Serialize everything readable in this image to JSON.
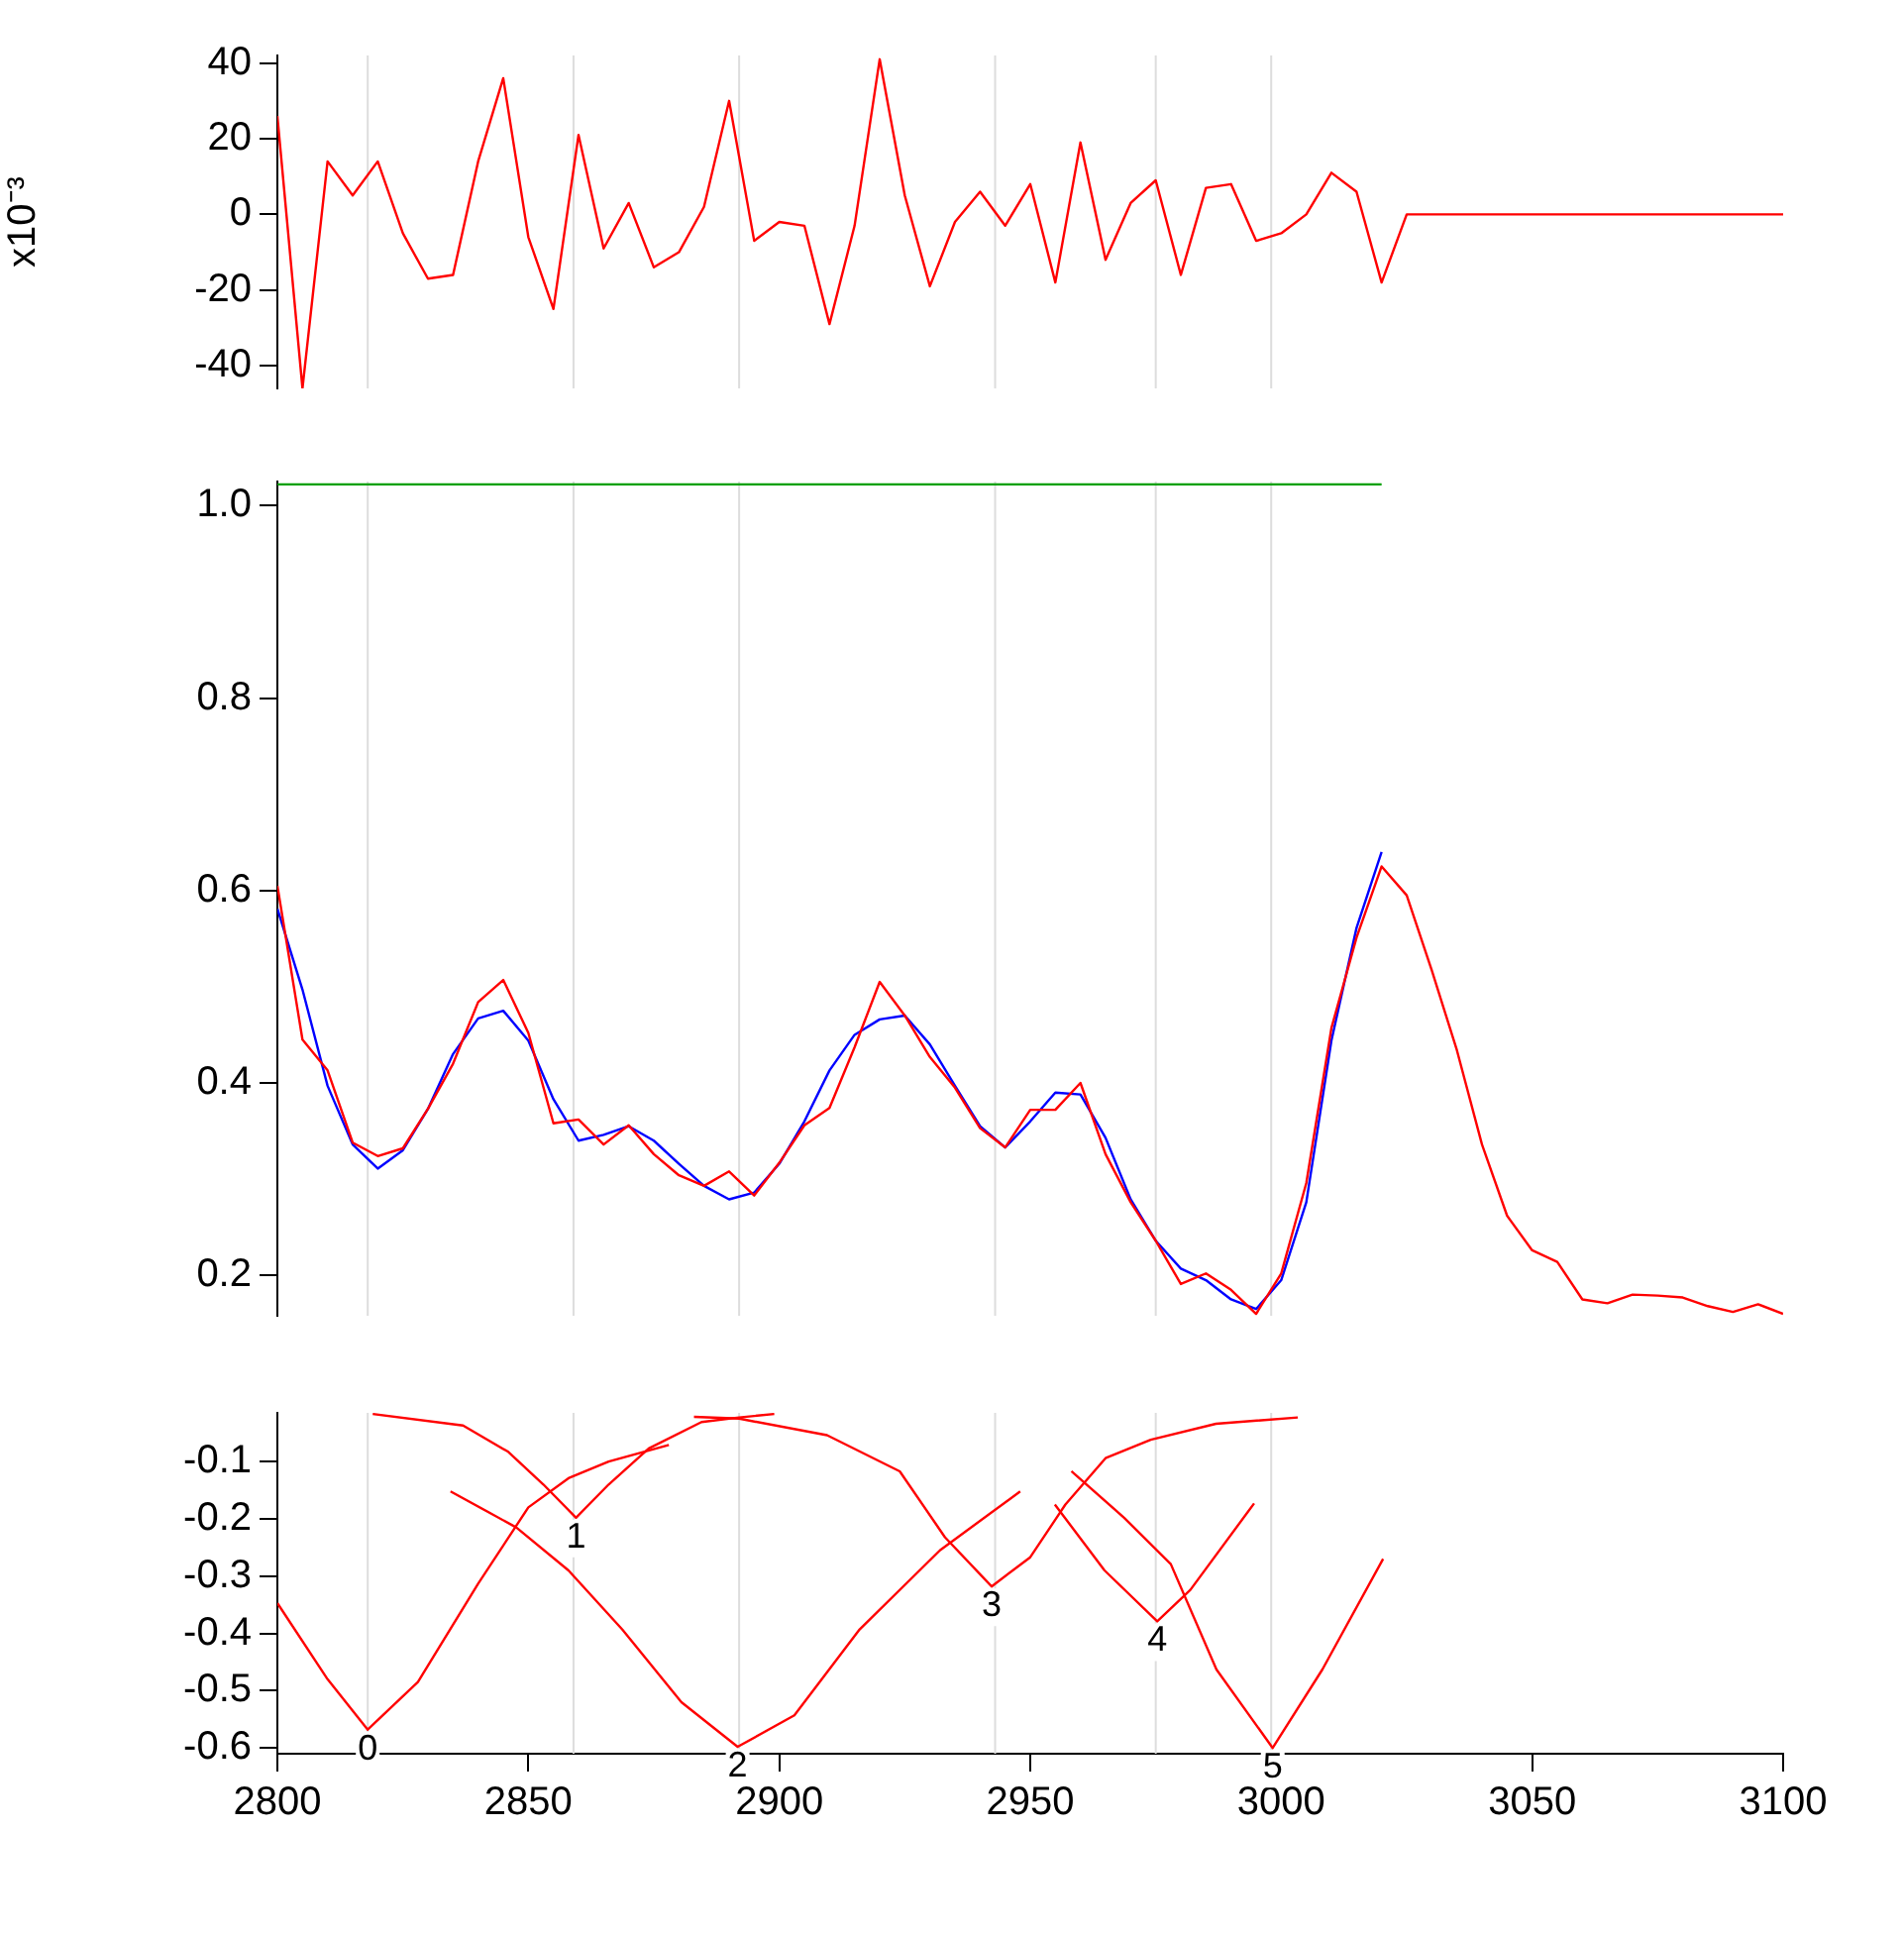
{
  "chart_data": [
    {
      "type": "line",
      "ylabel": "x10⁻³",
      "xlim": [
        2800,
        3100
      ],
      "ylim": [
        -46,
        42
      ],
      "yticks": [
        -40,
        -20,
        0,
        20,
        40
      ],
      "tick_labels": "y",
      "ref_lines": [
        {
          "axis": "x",
          "value": 2818,
          "color": "#dddddd"
        },
        {
          "axis": "x",
          "value": 2859,
          "color": "#dddddd"
        },
        {
          "axis": "x",
          "value": 2892,
          "color": "#dddddd"
        },
        {
          "axis": "x",
          "value": 2943,
          "color": "#dddddd"
        },
        {
          "axis": "x",
          "value": 2975,
          "color": "#dddddd"
        },
        {
          "axis": "x",
          "value": 2998,
          "color": "#dddddd"
        }
      ],
      "series": [
        {
          "color": "#ff0000",
          "x": [
            2800,
            2805,
            2810,
            2815,
            2820,
            2825,
            2830,
            2835,
            2840,
            2845,
            2850,
            2855,
            2860,
            2865,
            2870,
            2875,
            2880,
            2885,
            2890,
            2895,
            2900,
            2905,
            2910,
            2915,
            2920,
            2925,
            2930,
            2935,
            2940,
            2945,
            2950,
            2955,
            2960,
            2965,
            2970,
            2975,
            2980,
            2985,
            2990,
            2995,
            3000,
            3005,
            3010,
            3015,
            3020,
            3025,
            3100
          ],
          "values": [
            26,
            -46,
            14,
            5,
            14,
            -5,
            -17,
            -16,
            14,
            36,
            -6,
            -25,
            21,
            -9,
            3,
            -14,
            -10,
            2,
            30,
            -7,
            -2,
            -3,
            -29,
            -3,
            41,
            5,
            -19,
            -2,
            6,
            -3,
            8,
            -18,
            19,
            -12,
            3,
            9,
            -16,
            7,
            8,
            -7,
            -5,
            0,
            11,
            6,
            -18,
            0,
            0
          ]
        }
      ]
    },
    {
      "type": "line",
      "xlim": [
        2800,
        3100
      ],
      "ylim": [
        0.158,
        1.025
      ],
      "yticks": [
        0.2,
        0.4,
        0.6,
        0.8,
        {
          "value": 1,
          "label": "1.0"
        }
      ],
      "tick_labels": "y",
      "ref_lines": [
        {
          "axis": "x",
          "value": 2818,
          "color": "#dddddd"
        },
        {
          "axis": "x",
          "value": 2859,
          "color": "#dddddd"
        },
        {
          "axis": "x",
          "value": 2892,
          "color": "#dddddd"
        },
        {
          "axis": "x",
          "value": 2943,
          "color": "#dddddd"
        },
        {
          "axis": "x",
          "value": 2975,
          "color": "#dddddd"
        },
        {
          "axis": "x",
          "value": 2998,
          "color": "#dddddd"
        }
      ],
      "series": [
        {
          "color": "#00a000",
          "x": [
            2800,
            3020
          ],
          "values": [
            1.022,
            1.022
          ]
        },
        {
          "color": "#ff0000",
          "x": [
            2800,
            2805,
            2810,
            2815,
            2820,
            2825,
            2830,
            2835,
            2840,
            2845,
            2850,
            2855,
            2860,
            2865,
            2870,
            2875,
            2880,
            2885,
            2890,
            2895,
            2900,
            2905,
            2910,
            2915,
            2920,
            2925,
            2930,
            2935,
            2940,
            2945,
            2950,
            2955,
            2960,
            2965,
            2970,
            2975,
            2980,
            2985,
            2990,
            2995,
            3000,
            3005,
            3010,
            3015,
            3020,
            3025,
            3030,
            3035,
            3040,
            3045,
            3050,
            3055,
            3060,
            3065,
            3070,
            3075,
            3080,
            3085,
            3090,
            3095,
            3100
          ],
          "values": [
            0.605,
            0.445,
            0.413,
            0.338,
            0.324,
            0.332,
            0.373,
            0.42,
            0.484,
            0.507,
            0.452,
            0.358,
            0.362,
            0.336,
            0.356,
            0.326,
            0.304,
            0.293,
            0.308,
            0.283,
            0.317,
            0.356,
            0.374,
            0.437,
            0.505,
            0.47,
            0.427,
            0.395,
            0.353,
            0.333,
            0.372,
            0.372,
            0.4,
            0.326,
            0.276,
            0.236,
            0.191,
            0.202,
            0.185,
            0.16,
            0.202,
            0.296,
            0.457,
            0.551,
            0.625,
            0.595,
            0.517,
            0.434,
            0.336,
            0.262,
            0.226,
            0.214,
            0.175,
            0.171,
            0.18,
            0.179,
            0.177,
            0.168,
            0.162,
            0.17,
            0.16
          ]
        },
        {
          "color": "#0000ff",
          "x": [
            2800,
            2805,
            2810,
            2815,
            2820,
            2825,
            2830,
            2835,
            2840,
            2845,
            2850,
            2855,
            2860,
            2865,
            2870,
            2875,
            2880,
            2885,
            2890,
            2895,
            2900,
            2905,
            2910,
            2915,
            2920,
            2925,
            2930,
            2935,
            2940,
            2945,
            2950,
            2955,
            2960,
            2965,
            2970,
            2975,
            2980,
            2985,
            2990,
            2995,
            3000,
            3005,
            3010,
            3015,
            3020
          ],
          "values": [
            0.581,
            0.497,
            0.397,
            0.336,
            0.311,
            0.33,
            0.373,
            0.43,
            0.467,
            0.475,
            0.444,
            0.383,
            0.34,
            0.346,
            0.355,
            0.34,
            0.316,
            0.293,
            0.279,
            0.286,
            0.316,
            0.36,
            0.413,
            0.45,
            0.466,
            0.47,
            0.44,
            0.397,
            0.355,
            0.333,
            0.36,
            0.39,
            0.388,
            0.343,
            0.279,
            0.236,
            0.207,
            0.195,
            0.175,
            0.165,
            0.195,
            0.276,
            0.444,
            0.561,
            0.64
          ]
        }
      ]
    },
    {
      "type": "line",
      "xlim": [
        2800,
        3100
      ],
      "xticks": [
        2800,
        2850,
        2900,
        2950,
        3000,
        3050,
        3100
      ],
      "ylim": [
        -0.61,
        -0.015
      ],
      "yticks": [
        -0.6,
        -0.5,
        -0.4,
        -0.3,
        -0.2,
        -0.1
      ],
      "ref_lines": [
        {
          "axis": "x",
          "value": 2818,
          "color": "#dddddd"
        },
        {
          "axis": "x",
          "value": 2859,
          "color": "#dddddd"
        },
        {
          "axis": "x",
          "value": 2892,
          "color": "#dddddd"
        },
        {
          "axis": "x",
          "value": 2943,
          "color": "#dddddd"
        },
        {
          "axis": "x",
          "value": 2975,
          "color": "#dddddd"
        },
        {
          "axis": "x",
          "value": 2998,
          "color": "#dddddd"
        }
      ],
      "annotations": [
        {
          "text": "0",
          "x": 2818,
          "y": -0.568
        },
        {
          "text": "1",
          "x": 2859.5,
          "y": -0.198
        },
        {
          "text": "2",
          "x": 2891.7,
          "y": -0.598
        },
        {
          "text": "3",
          "x": 2942.3,
          "y": -0.318
        },
        {
          "text": "4",
          "x": 2975.3,
          "y": -0.379
        },
        {
          "text": "5",
          "x": 2998.3,
          "y": -0.6
        }
      ],
      "series": [
        {
          "color": "#ff0000",
          "x": [
            2800,
            2810,
            2818,
            2828,
            2840,
            2850,
            2858,
            2866,
            2878
          ],
          "values": [
            -0.347,
            -0.48,
            -0.568,
            -0.485,
            -0.313,
            -0.18,
            -0.129,
            -0.1,
            -0.071
          ]
        },
        {
          "color": "#ff0000",
          "x": [
            2819,
            2837,
            2846,
            2853,
            2859.5,
            2866,
            2874,
            2884.5,
            2892,
            2899
          ],
          "values": [
            -0.017,
            -0.037,
            -0.083,
            -0.14,
            -0.198,
            -0.14,
            -0.077,
            -0.031,
            -0.023,
            -0.017
          ]
        },
        {
          "color": "#ff0000",
          "x": [
            2834.5,
            2847.6,
            2858,
            2868.7,
            2880.5,
            2891.7,
            2903,
            2916,
            2932,
            2948
          ],
          "values": [
            -0.152,
            -0.215,
            -0.29,
            -0.393,
            -0.52,
            -0.598,
            -0.543,
            -0.393,
            -0.255,
            -0.152
          ]
        },
        {
          "color": "#ff0000",
          "x": [
            2883,
            2892,
            2909.5,
            2924,
            2933,
            2942.3,
            2950,
            2957,
            2965,
            2974,
            2987,
            3003.3
          ],
          "values": [
            -0.022,
            -0.025,
            -0.054,
            -0.117,
            -0.232,
            -0.318,
            -0.267,
            -0.175,
            -0.094,
            -0.062,
            -0.034,
            -0.023
          ]
        },
        {
          "color": "#ff0000",
          "x": [
            2954.9,
            2964.8,
            2975.3,
            2981.9,
            2994.6
          ],
          "values": [
            -0.175,
            -0.29,
            -0.379,
            -0.324,
            -0.173
          ]
        },
        {
          "color": "#ff0000",
          "x": [
            2958.2,
            2968.7,
            2978,
            2987.1,
            2998.3,
            3008.2,
            3020.3
          ],
          "values": [
            -0.117,
            -0.198,
            -0.279,
            -0.463,
            -0.6,
            -0.463,
            -0.27
          ]
        }
      ]
    }
  ]
}
